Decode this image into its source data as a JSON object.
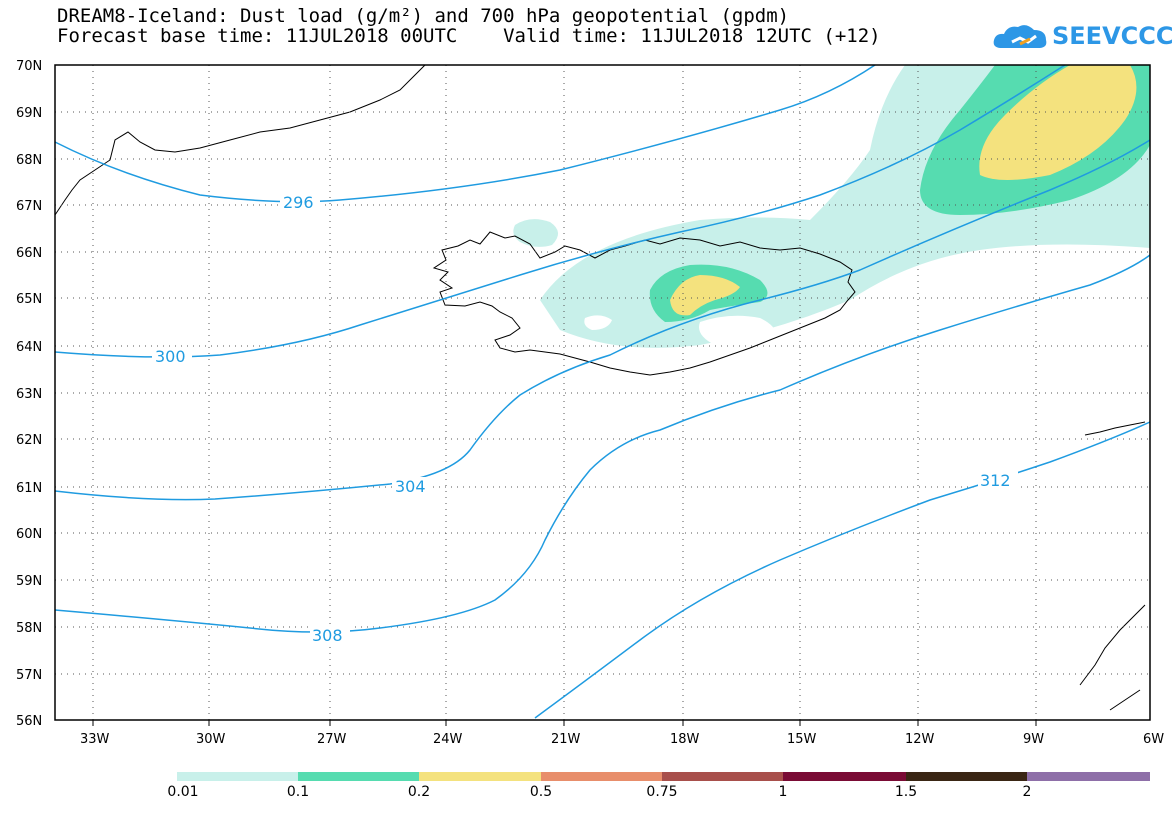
{
  "title": {
    "line1": "DREAM8-Iceland: Dust load (g/m²) and 700 hPa geopotential (gpdm)",
    "line2": "Forecast base time: 11JUL2018 00UTC    Valid time: 11JUL2018 12UTC (+12)"
  },
  "logo": {
    "text": "SEEVCCC",
    "icon": "cloud-icon"
  },
  "axes": {
    "lat_labels": [
      "70N",
      "69N",
      "68N",
      "67N",
      "66N",
      "65N",
      "64N",
      "63N",
      "62N",
      "61N",
      "60N",
      "59N",
      "58N",
      "57N",
      "56N"
    ],
    "lon_labels": [
      "33W",
      "30W",
      "27W",
      "24W",
      "21W",
      "18W",
      "15W",
      "12W",
      "9W",
      "6W"
    ]
  },
  "contour_labels": [
    "296",
    "300",
    "304",
    "308",
    "312"
  ],
  "colorbar": {
    "labels": [
      "0.01",
      "0.1",
      "0.2",
      "0.5",
      "0.75",
      "1",
      "1.5",
      "2"
    ],
    "colors": [
      "#c8f0ea",
      "#56dcb0",
      "#f4e27e",
      "#e88e6b",
      "#a84f4b",
      "#7a0b35",
      "#3a2614",
      "#8e6fa8"
    ]
  },
  "colors": {
    "contour": "#1f9be0",
    "frame": "#000000"
  }
}
